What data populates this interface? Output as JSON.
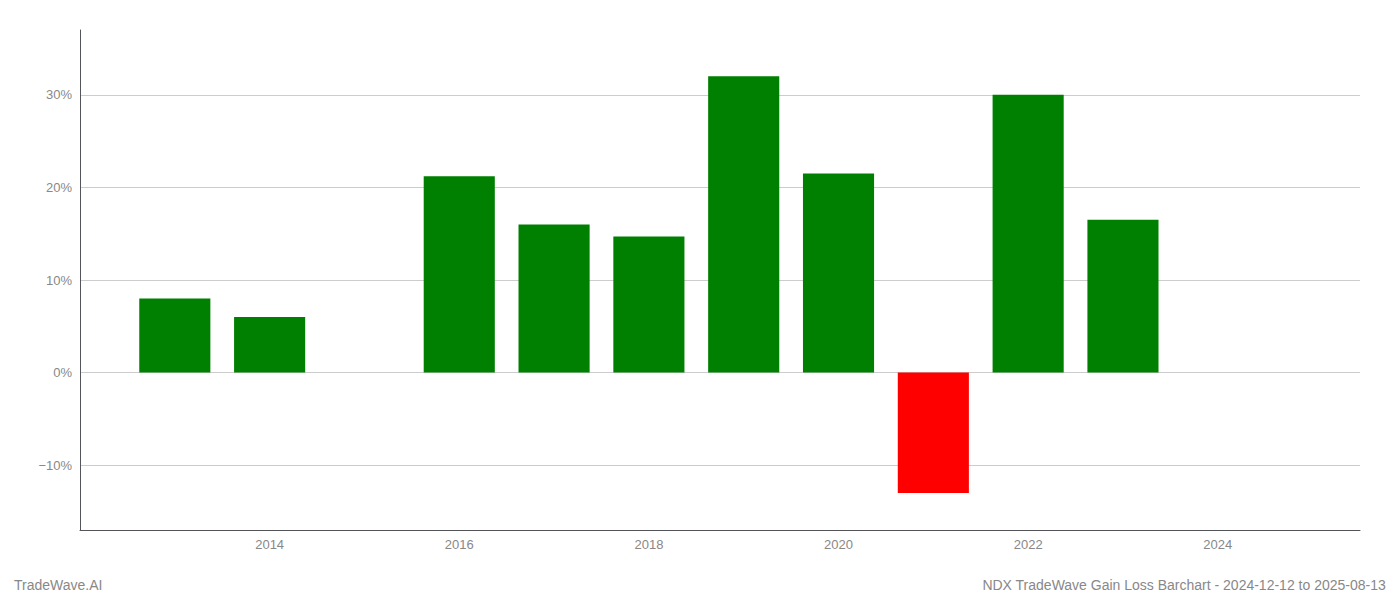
{
  "chart_data": {
    "type": "bar",
    "x": [
      2013,
      2014,
      2016,
      2017,
      2018,
      2019,
      2020,
      2021,
      2022,
      2023
    ],
    "values": [
      8.0,
      6.0,
      21.2,
      16.0,
      14.7,
      32.0,
      21.5,
      -13.0,
      30.0,
      16.5
    ],
    "colors": [
      "#008000",
      "#008000",
      "#008000",
      "#008000",
      "#008000",
      "#008000",
      "#008000",
      "#ff0000",
      "#008000",
      "#008000"
    ],
    "xlim": [
      2012.0,
      2025.5
    ],
    "ylim": [
      -17,
      37
    ],
    "xticks": [
      2014,
      2016,
      2018,
      2020,
      2022,
      2024
    ],
    "yticks": [
      {
        "value": -10,
        "label": "−10%"
      },
      {
        "value": 0,
        "label": "0%"
      },
      {
        "value": 10,
        "label": "10%"
      },
      {
        "value": 20,
        "label": "20%"
      },
      {
        "value": 30,
        "label": "30%"
      }
    ],
    "grid": true,
    "annotations": [
      "TradeWave.AI",
      "NDX TradeWave Gain Loss Barchart - 2024-12-12 to 2025-08-13"
    ]
  }
}
